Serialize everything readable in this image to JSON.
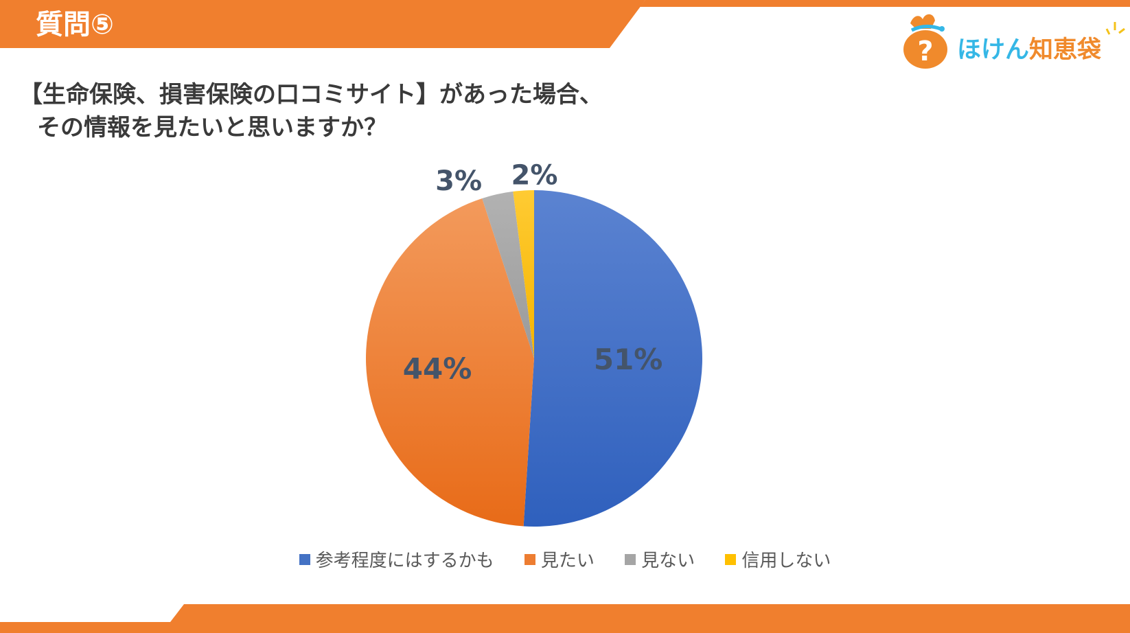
{
  "header": {
    "slide_label": "質問⑤"
  },
  "logo": {
    "text_a": "ほけん",
    "text_b": "知恵袋"
  },
  "question": {
    "line1": "【生命保険、損害保険の口コミサイト】があった場合、",
    "line2": "その情報を見たいと思いますか？"
  },
  "colors": {
    "accent": "#f07f2e",
    "blue": "#4472c4",
    "orange": "#ed7d31",
    "gray": "#a5a5a5",
    "yellow": "#ffc000",
    "label": "#44546a"
  },
  "chart_data": {
    "type": "pie",
    "title": "",
    "categories": [
      "参考程度にはするかも",
      "見たい",
      "見ない",
      "信用しない"
    ],
    "values": [
      51,
      44,
      3,
      2
    ],
    "labels": [
      "51%",
      "44%",
      "3%",
      "2%"
    ],
    "colors": [
      "#4472c4",
      "#ed7d31",
      "#a5a5a5",
      "#ffc000"
    ],
    "legend_position": "bottom"
  }
}
